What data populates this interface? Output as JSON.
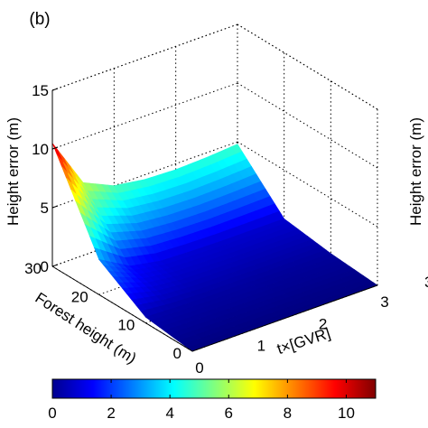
{
  "chart_data": {
    "type": "surface",
    "panel_label": "(b)",
    "xlabel": "t×[GVR]",
    "ylabel": "Forest height (m)",
    "zlabel": "Height error (m)",
    "x_ticks": [
      "0",
      "1",
      "2",
      "3"
    ],
    "y_ticks": [
      "0",
      "10",
      "20",
      "30"
    ],
    "z_ticks": [
      "0",
      "5",
      "10",
      "15"
    ],
    "xlim": [
      0,
      3
    ],
    "ylim": [
      0,
      30
    ],
    "zlim": [
      0,
      15
    ],
    "grid": true,
    "colormap": "jet",
    "colorbar": {
      "orientation": "horizontal",
      "location": "bottom",
      "range": [
        0,
        11
      ],
      "ticks": [
        "0",
        "2",
        "4",
        "6",
        "8",
        "10"
      ]
    },
    "series": [
      {
        "y": 0,
        "x": [
          0,
          0.5,
          1,
          1.5,
          2,
          2.5,
          3
        ],
        "z": [
          0,
          0,
          0,
          0,
          0,
          0,
          0
        ]
      },
      {
        "y": 10,
        "x": [
          0,
          0.5,
          1,
          1.5,
          2,
          2.5,
          3
        ],
        "z": [
          0.5,
          0.4,
          0.35,
          0.35,
          0.3,
          0.3,
          0.3
        ]
      },
      {
        "y": 20,
        "x": [
          0,
          0.5,
          1,
          1.5,
          2,
          2.5,
          3
        ],
        "z": [
          3,
          1.5,
          1.0,
          0.9,
          0.85,
          0.85,
          0.85
        ]
      },
      {
        "y": 30,
        "x": [
          0,
          0.5,
          1,
          1.5,
          2,
          2.5,
          3
        ],
        "z": [
          10.5,
          6.2,
          5.0,
          4.6,
          4.5,
          4.6,
          4.8
        ]
      }
    ],
    "edge_labels": [
      "3",
      "Height error (m)"
    ]
  }
}
